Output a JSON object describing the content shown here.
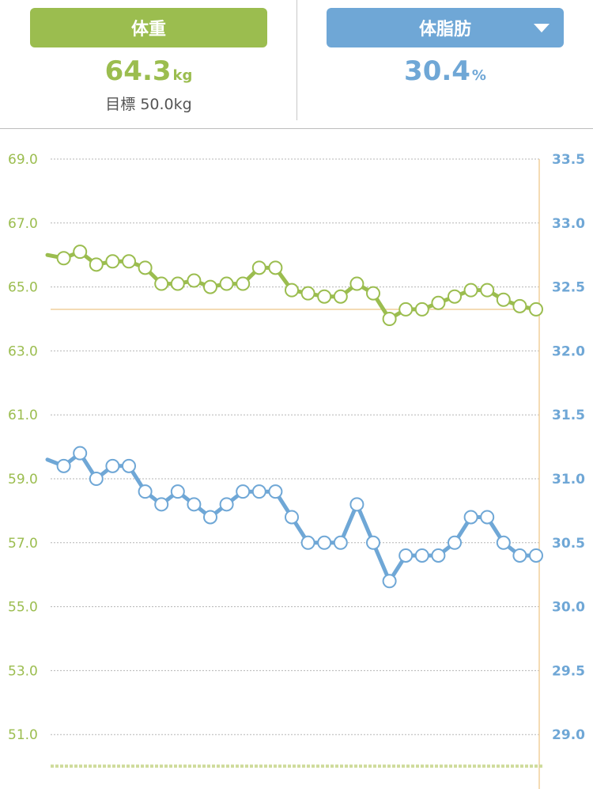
{
  "tabs": {
    "weight_label": "体重",
    "fat_label": "体脂肪"
  },
  "metrics": {
    "weight_value": "64.3",
    "weight_unit": "kg",
    "goal_text": "目標 50.0kg",
    "fat_value": "30.4",
    "fat_unit": "%"
  },
  "colors": {
    "weight": "#9bbd4f",
    "fat": "#6fa7d6",
    "goal_line": "#f1cf9c",
    "grid": "#b5b5b5"
  },
  "chart_data": {
    "type": "line",
    "left_axis": {
      "ticks": [
        "69.0",
        "67.0",
        "65.0",
        "63.0",
        "61.0",
        "59.0",
        "57.0",
        "55.0",
        "53.0",
        "51.0"
      ],
      "range": [
        49.0,
        69.0
      ]
    },
    "right_axis": {
      "ticks": [
        "33.5",
        "33.0",
        "32.5",
        "32.0",
        "31.5",
        "31.0",
        "30.5",
        "30.0",
        "29.5",
        "29.0"
      ],
      "range": [
        28.5,
        33.5
      ]
    },
    "goal_value": 50.0,
    "current_weight_line": 64.3,
    "series": [
      {
        "axis": "left",
        "values": [
          66.0,
          65.9,
          66.1,
          65.7,
          65.8,
          65.8,
          65.6,
          65.1,
          65.1,
          65.2,
          65.0,
          65.1,
          65.1,
          65.6,
          65.6,
          64.9,
          64.8,
          64.7,
          64.7,
          65.1,
          64.8,
          64.0,
          64.3,
          64.3,
          64.5,
          64.7,
          64.9,
          64.9,
          64.6,
          64.4,
          64.3
        ]
      },
      {
        "axis": "right",
        "values": [
          31.15,
          31.1,
          31.2,
          31.0,
          31.1,
          31.1,
          30.9,
          30.8,
          30.9,
          30.8,
          30.7,
          30.8,
          30.9,
          30.9,
          30.9,
          30.7,
          30.5,
          30.5,
          30.5,
          30.8,
          30.5,
          30.2,
          30.4,
          30.4,
          30.4,
          30.5,
          30.7,
          30.7,
          30.5,
          30.4,
          30.4
        ]
      }
    ]
  }
}
